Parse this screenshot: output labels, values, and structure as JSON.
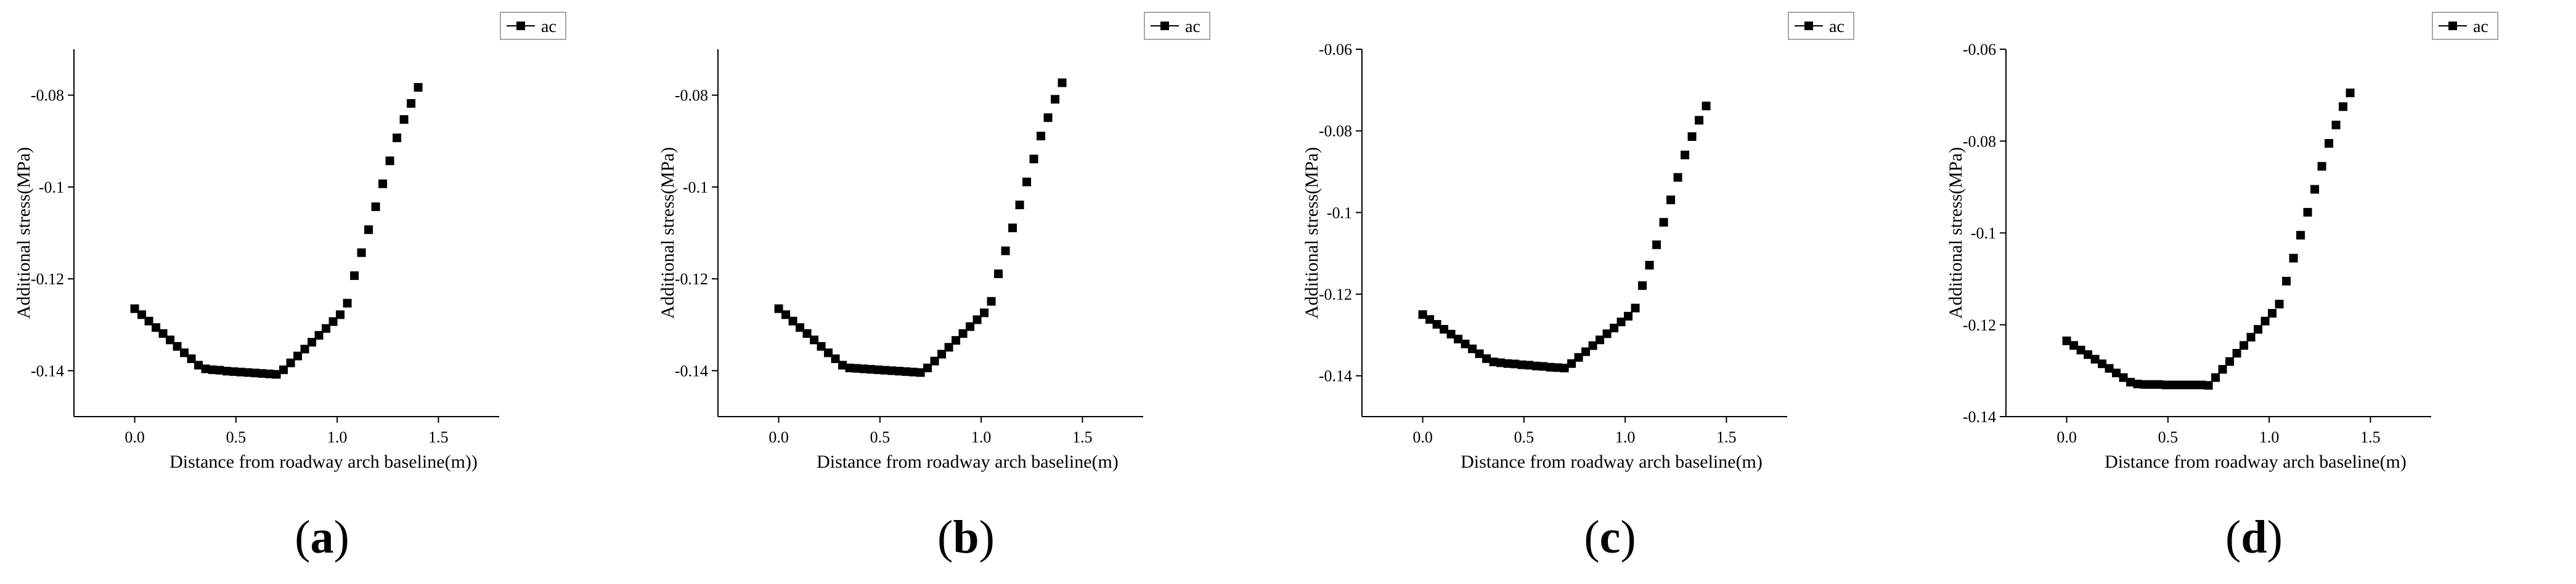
{
  "chart_data": [
    {
      "type": "scatter",
      "panel_label": "a",
      "xlabel": "Distance from roadway arch baseline(m))",
      "ylabel": "Additional stress(MPa)",
      "xlim": [
        -0.3,
        1.8
      ],
      "ylim": [
        -0.15,
        -0.07
      ],
      "xticks": [
        0.0,
        0.5,
        1.0,
        1.5
      ],
      "xtick_labels": [
        "0.0",
        "0.5",
        "1.0",
        "1.5"
      ],
      "yticks": [
        -0.14,
        -0.12,
        -0.1,
        -0.08
      ],
      "ytick_labels": [
        "-0.14",
        "-0.12",
        "-0.1",
        "-0.08"
      ],
      "legend": "top-right",
      "series": [
        {
          "name": "ac",
          "x": [
            0.0,
            0.035,
            0.07,
            0.105,
            0.14,
            0.175,
            0.21,
            0.245,
            0.28,
            0.315,
            0.35,
            0.385,
            0.42,
            0.455,
            0.49,
            0.525,
            0.56,
            0.595,
            0.63,
            0.665,
            0.7,
            0.735,
            0.77,
            0.805,
            0.84,
            0.875,
            0.91,
            0.945,
            0.98,
            1.015,
            1.05,
            1.085,
            1.12,
            1.155,
            1.19,
            1.225,
            1.26,
            1.295,
            1.33,
            1.365,
            1.4
          ],
          "y": [
            -0.1265,
            -0.1278,
            -0.1292,
            -0.1306,
            -0.1319,
            -0.1333,
            -0.1347,
            -0.1361,
            -0.1374,
            -0.1388,
            -0.1396,
            -0.1398,
            -0.1399,
            -0.1401,
            -0.1402,
            -0.1403,
            -0.1404,
            -0.1405,
            -0.1406,
            -0.1407,
            -0.1408,
            -0.1398,
            -0.1383,
            -0.1368,
            -0.1353,
            -0.1338,
            -0.1323,
            -0.1308,
            -0.1293,
            -0.1278,
            -0.1253,
            -0.1193,
            -0.1143,
            -0.1093,
            -0.1043,
            -0.0993,
            -0.0943,
            -0.0893,
            -0.0853,
            -0.0818,
            -0.0783
          ]
        }
      ]
    },
    {
      "type": "scatter",
      "panel_label": "b",
      "xlabel": "Distance from roadway arch baseline(m)",
      "ylabel": "Additional stress(MPa)",
      "xlim": [
        -0.3,
        1.8
      ],
      "ylim": [
        -0.15,
        -0.07
      ],
      "xticks": [
        0.0,
        0.5,
        1.0,
        1.5
      ],
      "xtick_labels": [
        "0.0",
        "0.5",
        "1.0",
        "1.5"
      ],
      "yticks": [
        -0.14,
        -0.12,
        -0.1,
        -0.08
      ],
      "ytick_labels": [
        "-0.14",
        "-0.12",
        "-0.1",
        "-0.08"
      ],
      "legend": "top-right",
      "series": [
        {
          "name": "ac",
          "x": [
            0.0,
            0.035,
            0.07,
            0.105,
            0.14,
            0.175,
            0.21,
            0.245,
            0.28,
            0.315,
            0.35,
            0.385,
            0.42,
            0.455,
            0.49,
            0.525,
            0.56,
            0.595,
            0.63,
            0.665,
            0.7,
            0.735,
            0.77,
            0.805,
            0.84,
            0.875,
            0.91,
            0.945,
            0.98,
            1.015,
            1.05,
            1.085,
            1.12,
            1.155,
            1.19,
            1.225,
            1.26,
            1.295,
            1.33,
            1.365,
            1.4
          ],
          "y": [
            -0.1265,
            -0.1278,
            -0.1292,
            -0.1306,
            -0.1319,
            -0.1333,
            -0.1347,
            -0.1361,
            -0.1374,
            -0.1388,
            -0.1394,
            -0.1395,
            -0.1396,
            -0.1397,
            -0.1398,
            -0.1399,
            -0.14,
            -0.1401,
            -0.1402,
            -0.1403,
            -0.1404,
            -0.1394,
            -0.1379,
            -0.1364,
            -0.1349,
            -0.1334,
            -0.1319,
            -0.1304,
            -0.1289,
            -0.1274,
            -0.1249,
            -0.1189,
            -0.1139,
            -0.1089,
            -0.1039,
            -0.0989,
            -0.0939,
            -0.0889,
            -0.0849,
            -0.0809,
            -0.0773
          ]
        }
      ]
    },
    {
      "type": "scatter",
      "panel_label": "c",
      "xlabel": "Distance from roadway arch baseline(m)",
      "ylabel": "Additional stress(MPa)",
      "xlim": [
        -0.3,
        1.8
      ],
      "ylim": [
        -0.15,
        -0.06
      ],
      "xticks": [
        0.0,
        0.5,
        1.0,
        1.5
      ],
      "xtick_labels": [
        "0.0",
        "0.5",
        "1.0",
        "1.5"
      ],
      "yticks": [
        -0.14,
        -0.12,
        -0.1,
        -0.08,
        -0.06
      ],
      "ytick_labels": [
        "-0.14",
        "-0.12",
        "-0.1",
        "-0.08",
        "-0.06"
      ],
      "legend": "top-right",
      "series": [
        {
          "name": "ac",
          "x": [
            0.0,
            0.035,
            0.07,
            0.105,
            0.14,
            0.175,
            0.21,
            0.245,
            0.28,
            0.315,
            0.35,
            0.385,
            0.42,
            0.455,
            0.49,
            0.525,
            0.56,
            0.595,
            0.63,
            0.665,
            0.7,
            0.735,
            0.77,
            0.805,
            0.84,
            0.875,
            0.91,
            0.945,
            0.98,
            1.015,
            1.05,
            1.085,
            1.12,
            1.155,
            1.19,
            1.225,
            1.26,
            1.295,
            1.33,
            1.365,
            1.4
          ],
          "y": [
            -0.125,
            -0.1262,
            -0.1274,
            -0.1286,
            -0.1298,
            -0.131,
            -0.1322,
            -0.1334,
            -0.1346,
            -0.1358,
            -0.1366,
            -0.1368,
            -0.137,
            -0.1371,
            -0.1373,
            -0.1374,
            -0.1376,
            -0.1377,
            -0.1379,
            -0.138,
            -0.1381,
            -0.137,
            -0.1355,
            -0.1341,
            -0.1326,
            -0.1312,
            -0.1297,
            -0.1283,
            -0.1268,
            -0.1254,
            -0.1234,
            -0.1179,
            -0.1129,
            -0.1079,
            -0.1024,
            -0.0969,
            -0.0914,
            -0.0859,
            -0.0814,
            -0.0774,
            -0.0739
          ]
        }
      ]
    },
    {
      "type": "scatter",
      "panel_label": "d",
      "xlabel": "Distance from roadway arch baseline(m)",
      "ylabel": "Additional stress(MPa)",
      "xlim": [
        -0.3,
        1.8
      ],
      "ylim": [
        -0.14,
        -0.06
      ],
      "xticks": [
        0.0,
        0.5,
        1.0,
        1.5
      ],
      "xtick_labels": [
        "0.0",
        "0.5",
        "1.0",
        "1.5"
      ],
      "yticks": [
        -0.14,
        -0.12,
        -0.1,
        -0.08,
        -0.06
      ],
      "ytick_labels": [
        "-0.14",
        "-0.12",
        "-0.1",
        "-0.08",
        "-0.06"
      ],
      "legend": "top-right",
      "series": [
        {
          "name": "ac",
          "x": [
            0.0,
            0.035,
            0.07,
            0.105,
            0.14,
            0.175,
            0.21,
            0.245,
            0.28,
            0.315,
            0.35,
            0.385,
            0.42,
            0.455,
            0.49,
            0.525,
            0.56,
            0.595,
            0.63,
            0.665,
            0.7,
            0.735,
            0.77,
            0.805,
            0.84,
            0.875,
            0.91,
            0.945,
            0.98,
            1.015,
            1.05,
            1.085,
            1.12,
            1.155,
            1.19,
            1.225,
            1.26,
            1.295,
            1.33,
            1.365,
            1.4
          ],
          "y": [
            -0.1235,
            -0.1245,
            -0.1255,
            -0.1265,
            -0.1275,
            -0.1285,
            -0.1295,
            -0.1305,
            -0.1315,
            -0.1325,
            -0.1329,
            -0.133,
            -0.133,
            -0.133,
            -0.1331,
            -0.1331,
            -0.1331,
            -0.1331,
            -0.1331,
            -0.1331,
            -0.1332,
            -0.1315,
            -0.1297,
            -0.128,
            -0.1262,
            -0.1245,
            -0.1227,
            -0.121,
            -0.1192,
            -0.1175,
            -0.1155,
            -0.1105,
            -0.1055,
            -0.1005,
            -0.0955,
            -0.0905,
            -0.0855,
            -0.0805,
            -0.0765,
            -0.0725,
            -0.0695
          ]
        }
      ]
    }
  ]
}
